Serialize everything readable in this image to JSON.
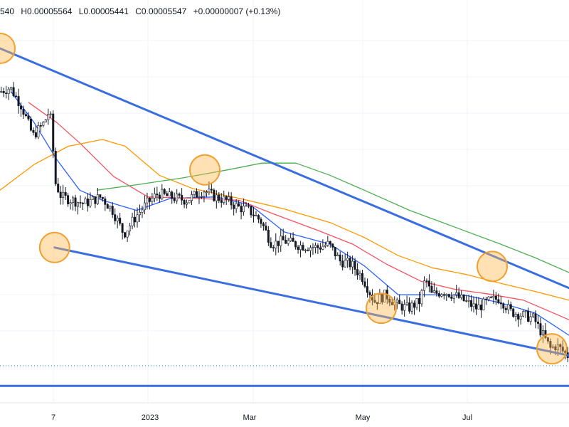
{
  "header": {
    "open": "540",
    "high": "H0.00005564",
    "low": "L0.00005441",
    "close": "C0.00005547",
    "change": "+0.00000007 (+0.13%)"
  },
  "chart_data": {
    "type": "candlestick",
    "x_tick_labels": [
      "7",
      "2023",
      "Mar",
      "May",
      "Jul"
    ],
    "grid": true,
    "candle_colors": {
      "up": "#089981",
      "down": "#f23645",
      "wick": "#131722"
    },
    "price_path": [
      {
        "t": 0.0,
        "p": 8.45e-05
      },
      {
        "t": 0.02,
        "p": 8.52e-05
      },
      {
        "t": 0.04,
        "p": 8.25e-05
      },
      {
        "t": 0.06,
        "p": 7.8e-05
      },
      {
        "t": 0.08,
        "p": 8e-05
      },
      {
        "t": 0.09,
        "p": 8.2e-05
      },
      {
        "t": 0.1,
        "p": 7.1e-05
      },
      {
        "t": 0.11,
        "p": 6.9e-05
      },
      {
        "t": 0.13,
        "p": 6.85e-05
      },
      {
        "t": 0.15,
        "p": 6.8e-05
      },
      {
        "t": 0.18,
        "p": 6.9e-05
      },
      {
        "t": 0.2,
        "p": 6.7e-05
      },
      {
        "t": 0.22,
        "p": 6.35e-05
      },
      {
        "t": 0.24,
        "p": 6.6e-05
      },
      {
        "t": 0.26,
        "p": 6.8e-05
      },
      {
        "t": 0.28,
        "p": 6.95e-05
      },
      {
        "t": 0.3,
        "p": 6.9e-05
      },
      {
        "t": 0.33,
        "p": 6.85e-05
      },
      {
        "t": 0.36,
        "p": 7e-05
      },
      {
        "t": 0.38,
        "p": 6.9e-05
      },
      {
        "t": 0.4,
        "p": 6.85e-05
      },
      {
        "t": 0.42,
        "p": 6.75e-05
      },
      {
        "t": 0.44,
        "p": 6.7e-05
      },
      {
        "t": 0.46,
        "p": 6.55e-05
      },
      {
        "t": 0.48,
        "p": 6.2e-05
      },
      {
        "t": 0.5,
        "p": 6.25e-05
      },
      {
        "t": 0.53,
        "p": 6.18e-05
      },
      {
        "t": 0.56,
        "p": 6.15e-05
      },
      {
        "t": 0.58,
        "p": 6.2e-05
      },
      {
        "t": 0.6,
        "p": 5.95e-05
      },
      {
        "t": 0.62,
        "p": 5.9e-05
      },
      {
        "t": 0.64,
        "p": 5.7e-05
      },
      {
        "t": 0.66,
        "p": 5.35e-05
      },
      {
        "t": 0.68,
        "p": 5.45e-05
      },
      {
        "t": 0.7,
        "p": 5.3e-05
      },
      {
        "t": 0.72,
        "p": 5.25e-05
      },
      {
        "t": 0.74,
        "p": 5.35e-05
      },
      {
        "t": 0.75,
        "p": 5.7e-05
      },
      {
        "t": 0.76,
        "p": 5.45e-05
      },
      {
        "t": 0.78,
        "p": 5.5e-05
      },
      {
        "t": 0.8,
        "p": 5.45e-05
      },
      {
        "t": 0.82,
        "p": 5.35e-05
      },
      {
        "t": 0.84,
        "p": 5.25e-05
      },
      {
        "t": 0.86,
        "p": 5.35e-05
      },
      {
        "t": 0.88,
        "p": 5.4e-05
      },
      {
        "t": 0.9,
        "p": 5.2e-05
      },
      {
        "t": 0.92,
        "p": 5.15e-05
      },
      {
        "t": 0.94,
        "p": 5.1e-05
      },
      {
        "t": 0.96,
        "p": 4.8e-05
      },
      {
        "t": 0.97,
        "p": 4.65e-05
      },
      {
        "t": 0.98,
        "p": 4.7e-05
      },
      {
        "t": 1.0,
        "p": 4.55e-05
      }
    ],
    "moving_averages": [
      {
        "color": "#2962ff",
        "path": [
          {
            "t": 0.02,
            "p": 8.45e-05
          },
          {
            "t": 0.06,
            "p": 8e-05
          },
          {
            "t": 0.1,
            "p": 7.45e-05
          },
          {
            "t": 0.14,
            "p": 7e-05
          },
          {
            "t": 0.18,
            "p": 6.85e-05
          },
          {
            "t": 0.24,
            "p": 6.7e-05
          },
          {
            "t": 0.3,
            "p": 6.88e-05
          },
          {
            "t": 0.38,
            "p": 6.9e-05
          },
          {
            "t": 0.44,
            "p": 6.78e-05
          },
          {
            "t": 0.5,
            "p": 6.38e-05
          },
          {
            "t": 0.58,
            "p": 6.2e-05
          },
          {
            "t": 0.64,
            "p": 5.88e-05
          },
          {
            "t": 0.7,
            "p": 5.45e-05
          },
          {
            "t": 0.76,
            "p": 5.45e-05
          },
          {
            "t": 0.82,
            "p": 5.44e-05
          },
          {
            "t": 0.88,
            "p": 5.33e-05
          },
          {
            "t": 0.94,
            "p": 5.18e-05
          },
          {
            "t": 1.0,
            "p": 4.85e-05
          }
        ]
      },
      {
        "color": "#f7525f",
        "path": [
          {
            "t": 0.05,
            "p": 8.3e-05
          },
          {
            "t": 0.1,
            "p": 8e-05
          },
          {
            "t": 0.14,
            "p": 7.7e-05
          },
          {
            "t": 0.2,
            "p": 7.2e-05
          },
          {
            "t": 0.26,
            "p": 6.9e-05
          },
          {
            "t": 0.34,
            "p": 6.88e-05
          },
          {
            "t": 0.42,
            "p": 6.85e-05
          },
          {
            "t": 0.48,
            "p": 6.65e-05
          },
          {
            "t": 0.56,
            "p": 6.4e-05
          },
          {
            "t": 0.62,
            "p": 6.2e-05
          },
          {
            "t": 0.68,
            "p": 5.9e-05
          },
          {
            "t": 0.74,
            "p": 5.65e-05
          },
          {
            "t": 0.8,
            "p": 5.53e-05
          },
          {
            "t": 0.86,
            "p": 5.46e-05
          },
          {
            "t": 0.92,
            "p": 5.37e-05
          },
          {
            "t": 1.0,
            "p": 5.08e-05
          }
        ]
      },
      {
        "color": "#ff9800",
        "path": [
          {
            "t": 0.0,
            "p": 7e-05
          },
          {
            "t": 0.06,
            "p": 7.38e-05
          },
          {
            "t": 0.12,
            "p": 7.65e-05
          },
          {
            "t": 0.18,
            "p": 7.75e-05
          },
          {
            "t": 0.22,
            "p": 7.65e-05
          },
          {
            "t": 0.28,
            "p": 7.22e-05
          },
          {
            "t": 0.34,
            "p": 7.02e-05
          },
          {
            "t": 0.42,
            "p": 6.88e-05
          },
          {
            "t": 0.5,
            "p": 6.72e-05
          },
          {
            "t": 0.58,
            "p": 6.52e-05
          },
          {
            "t": 0.64,
            "p": 6.3e-05
          },
          {
            "t": 0.7,
            "p": 6.03e-05
          },
          {
            "t": 0.76,
            "p": 5.85e-05
          },
          {
            "t": 0.82,
            "p": 5.75e-05
          },
          {
            "t": 0.88,
            "p": 5.62e-05
          },
          {
            "t": 0.94,
            "p": 5.5e-05
          },
          {
            "t": 1.0,
            "p": 5.37e-05
          }
        ]
      },
      {
        "color": "#4caf50",
        "path": [
          {
            "t": 0.17,
            "p": 7e-05
          },
          {
            "t": 0.24,
            "p": 7.08e-05
          },
          {
            "t": 0.32,
            "p": 7.18e-05
          },
          {
            "t": 0.4,
            "p": 7.3e-05
          },
          {
            "t": 0.46,
            "p": 7.4e-05
          },
          {
            "t": 0.52,
            "p": 7.4e-05
          },
          {
            "t": 0.58,
            "p": 7.22e-05
          },
          {
            "t": 0.64,
            "p": 7e-05
          },
          {
            "t": 0.72,
            "p": 6.7e-05
          },
          {
            "t": 0.8,
            "p": 6.45e-05
          },
          {
            "t": 0.88,
            "p": 6.2e-05
          },
          {
            "t": 0.94,
            "p": 6e-05
          },
          {
            "t": 1.0,
            "p": 5.78e-05
          }
        ]
      }
    ],
    "trendlines": [
      {
        "name": "upper-channel",
        "color": "#3a6ee0",
        "from": {
          "t": 0.0,
          "p": 9.1e-05
        },
        "to": {
          "t": 1.0,
          "p": 5.55e-05
        }
      },
      {
        "name": "lower-channel",
        "color": "#3a6ee0",
        "from": {
          "t": 0.096,
          "p": 6.15e-05
        },
        "to": {
          "t": 1.0,
          "p": 4.55e-05
        }
      },
      {
        "name": "support",
        "color": "#3a6ee0",
        "from": {
          "t": 0.0,
          "p": 4.1e-05
        },
        "to": {
          "t": 1.0,
          "p": 4.1e-05
        }
      }
    ],
    "highlight_circles": [
      {
        "t": 0.0,
        "p": 9.1e-05
      },
      {
        "t": 0.096,
        "p": 6.15e-05
      },
      {
        "t": 0.36,
        "p": 7.3e-05
      },
      {
        "t": 0.67,
        "p": 5.25e-05
      },
      {
        "t": 0.865,
        "p": 5.87e-05
      },
      {
        "t": 0.97,
        "p": 4.65e-05
      }
    ],
    "current_price_line": {
      "p": 4.4e-05,
      "color": "#089981"
    }
  }
}
